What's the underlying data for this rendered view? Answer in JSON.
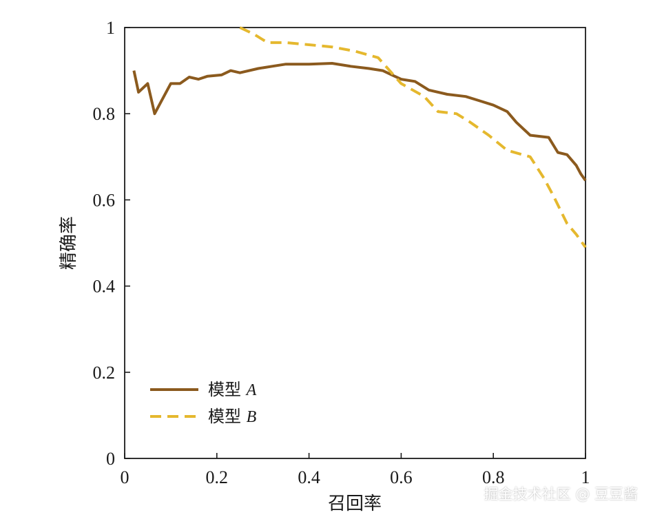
{
  "chart_data": {
    "type": "line",
    "xlabel": "召回率",
    "ylabel": "精确率",
    "xlim": [
      0,
      1
    ],
    "ylim": [
      0,
      1
    ],
    "xticks": [
      "0",
      "0.2",
      "0.4",
      "0.6",
      "0.8",
      "1"
    ],
    "yticks": [
      "0",
      "0.2",
      "0.4",
      "0.6",
      "0.8",
      "1"
    ],
    "grid": false,
    "legend_position": "bottom-left",
    "series": [
      {
        "name": "模型 A",
        "name_prefix": "模型",
        "name_suffix": "A",
        "color": "#8B5A1E",
        "style": "solid",
        "points": [
          [
            0.02,
            0.9
          ],
          [
            0.03,
            0.85
          ],
          [
            0.05,
            0.87
          ],
          [
            0.065,
            0.8
          ],
          [
            0.08,
            0.83
          ],
          [
            0.1,
            0.87
          ],
          [
            0.12,
            0.87
          ],
          [
            0.14,
            0.885
          ],
          [
            0.16,
            0.88
          ],
          [
            0.18,
            0.887
          ],
          [
            0.21,
            0.89
          ],
          [
            0.23,
            0.9
          ],
          [
            0.25,
            0.895
          ],
          [
            0.29,
            0.905
          ],
          [
            0.32,
            0.91
          ],
          [
            0.35,
            0.915
          ],
          [
            0.4,
            0.915
          ],
          [
            0.45,
            0.917
          ],
          [
            0.49,
            0.91
          ],
          [
            0.53,
            0.905
          ],
          [
            0.56,
            0.9
          ],
          [
            0.58,
            0.89
          ],
          [
            0.6,
            0.88
          ],
          [
            0.63,
            0.875
          ],
          [
            0.66,
            0.855
          ],
          [
            0.7,
            0.845
          ],
          [
            0.74,
            0.84
          ],
          [
            0.77,
            0.83
          ],
          [
            0.8,
            0.82
          ],
          [
            0.83,
            0.805
          ],
          [
            0.85,
            0.78
          ],
          [
            0.88,
            0.75
          ],
          [
            0.92,
            0.745
          ],
          [
            0.94,
            0.71
          ],
          [
            0.96,
            0.705
          ],
          [
            0.98,
            0.68
          ],
          [
            0.99,
            0.66
          ],
          [
            1.0,
            0.645
          ]
        ]
      },
      {
        "name": "模型 B",
        "name_prefix": "模型",
        "name_suffix": "B",
        "color": "#E5B82E",
        "style": "dashed",
        "points": [
          [
            0.25,
            1.0
          ],
          [
            0.28,
            0.985
          ],
          [
            0.31,
            0.965
          ],
          [
            0.35,
            0.965
          ],
          [
            0.4,
            0.96
          ],
          [
            0.45,
            0.955
          ],
          [
            0.5,
            0.945
          ],
          [
            0.55,
            0.93
          ],
          [
            0.575,
            0.9
          ],
          [
            0.6,
            0.87
          ],
          [
            0.65,
            0.84
          ],
          [
            0.68,
            0.805
          ],
          [
            0.72,
            0.8
          ],
          [
            0.75,
            0.78
          ],
          [
            0.79,
            0.75
          ],
          [
            0.83,
            0.715
          ],
          [
            0.88,
            0.7
          ],
          [
            0.91,
            0.65
          ],
          [
            0.93,
            0.61
          ],
          [
            0.96,
            0.545
          ],
          [
            0.98,
            0.52
          ],
          [
            1.0,
            0.49
          ]
        ]
      }
    ]
  },
  "watermark": "掘金技术社区 @ 豆豆酱"
}
